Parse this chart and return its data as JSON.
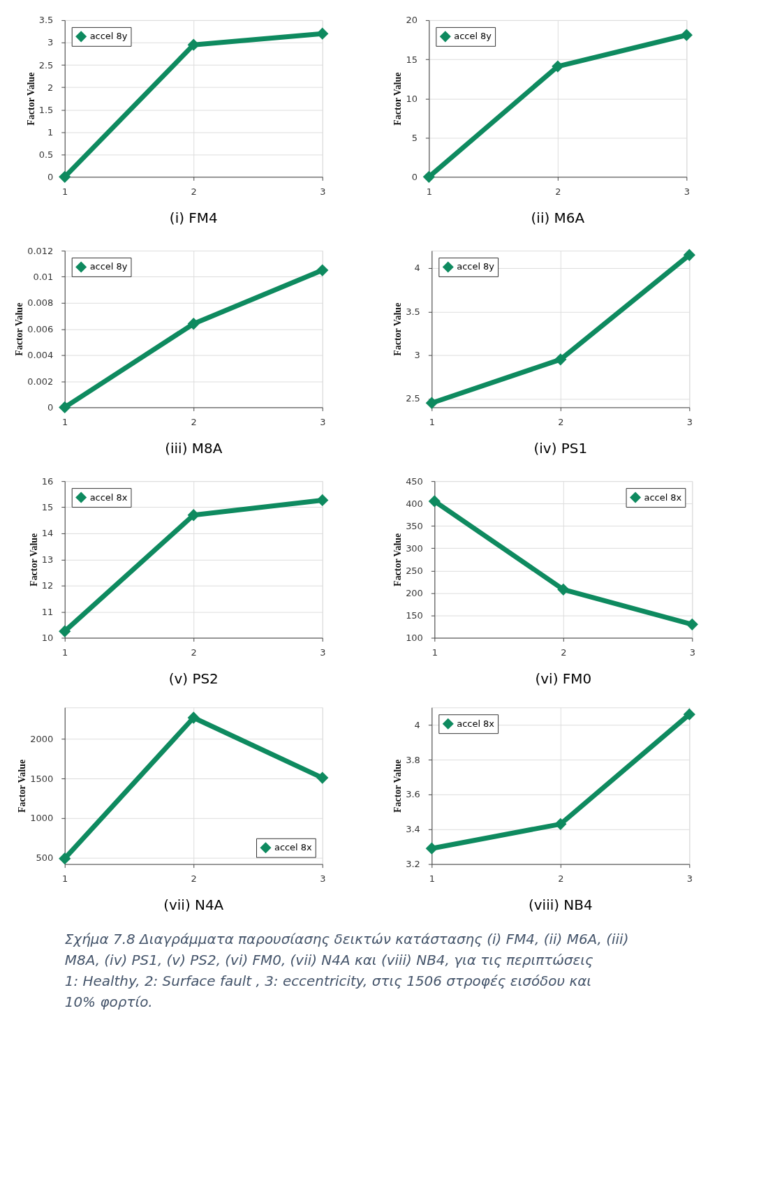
{
  "chart_data": [
    {
      "type": "line",
      "title": "(i) FM4",
      "ylabel": "Factor Value",
      "x": [
        1,
        2,
        3
      ],
      "xlim": [
        1,
        3
      ],
      "xticks": [
        1,
        2,
        3
      ],
      "ylim": [
        0,
        3.5
      ],
      "yticks": [
        0,
        0.5,
        1,
        1.5,
        2,
        2.5,
        3,
        3.5
      ],
      "grid": true,
      "legend": "top left",
      "marker": "diamond",
      "line_style": "solid",
      "series": [
        {
          "name": "accel 8y",
          "color": "#0e8a5f",
          "values": [
            0,
            2.95,
            3.2
          ]
        }
      ]
    },
    {
      "type": "line",
      "title": "(ii) M6A",
      "ylabel": "Factor Value",
      "x": [
        1,
        2,
        3
      ],
      "xlim": [
        1,
        3
      ],
      "xticks": [
        1,
        2,
        3
      ],
      "ylim": [
        0,
        20
      ],
      "yticks": [
        0,
        5,
        10,
        15,
        20
      ],
      "grid": true,
      "legend": "top left",
      "marker": "diamond",
      "line_style": "solid",
      "series": [
        {
          "name": "accel 8y",
          "color": "#0e8a5f",
          "values": [
            0,
            14.1,
            18.1
          ]
        }
      ]
    },
    {
      "type": "line",
      "title": "(iii) M8A",
      "ylabel": "Factor Value",
      "x": [
        1,
        2,
        3
      ],
      "xlim": [
        1,
        3
      ],
      "xticks": [
        1,
        2,
        3
      ],
      "ylim": [
        0,
        0.012
      ],
      "yticks": [
        0,
        0.002,
        0.004,
        0.006,
        0.008,
        0.01,
        0.012
      ],
      "grid": true,
      "legend": "top left",
      "marker": "diamond",
      "line_style": "solid",
      "series": [
        {
          "name": "accel 8y",
          "color": "#0e8a5f",
          "values": [
            0,
            0.0064,
            0.0105
          ]
        }
      ]
    },
    {
      "type": "line",
      "title": "(iv) PS1",
      "ylabel": "Factor Value",
      "x": [
        1,
        2,
        3
      ],
      "xlim": [
        1,
        3
      ],
      "xticks": [
        1,
        2,
        3
      ],
      "ylim": [
        2.4,
        4.2
      ],
      "yticks": [
        2.5,
        3,
        3.5,
        4
      ],
      "grid": true,
      "legend": "top left",
      "marker": "diamond",
      "line_style": "solid",
      "series": [
        {
          "name": "accel 8y",
          "color": "#0e8a5f",
          "values": [
            2.45,
            2.95,
            4.15
          ]
        }
      ]
    },
    {
      "type": "line",
      "title": "(v) PS2",
      "ylabel": "Factor Value",
      "x": [
        1,
        2,
        3
      ],
      "xlim": [
        1,
        3
      ],
      "xticks": [
        1,
        2,
        3
      ],
      "ylim": [
        10,
        16
      ],
      "yticks": [
        10,
        11,
        12,
        13,
        14,
        15,
        16
      ],
      "grid": true,
      "legend": "top left",
      "marker": "diamond",
      "line_style": "solid",
      "series": [
        {
          "name": "accel 8x",
          "color": "#0e8a5f",
          "values": [
            10.25,
            14.7,
            15.27
          ]
        }
      ]
    },
    {
      "type": "line",
      "title": "(vi) FM0",
      "ylabel": "Factor Value",
      "x": [
        1,
        2,
        3
      ],
      "xlim": [
        1,
        3
      ],
      "xticks": [
        1,
        2,
        3
      ],
      "ylim": [
        100,
        450
      ],
      "yticks": [
        100,
        150,
        200,
        250,
        300,
        350,
        400,
        450
      ],
      "grid": true,
      "legend": "top right",
      "marker": "diamond",
      "line_style": "solid",
      "series": [
        {
          "name": "accel 8x",
          "color": "#0e8a5f",
          "values": [
            405,
            208,
            130
          ]
        }
      ]
    },
    {
      "type": "line",
      "title": "(vii) N4A",
      "ylabel": "Factor Value",
      "x": [
        1,
        2,
        3
      ],
      "xlim": [
        1,
        3
      ],
      "xticks": [
        1,
        2,
        3
      ],
      "ylim": [
        420,
        2400
      ],
      "yticks": [
        500,
        1000,
        1500,
        2000
      ],
      "grid": true,
      "legend": "bottom right",
      "marker": "diamond",
      "line_style": "solid",
      "series": [
        {
          "name": "accel 8x",
          "color": "#0e8a5f",
          "values": [
            490,
            2270,
            1510
          ]
        }
      ]
    },
    {
      "type": "line",
      "title": "(viii) NB4",
      "ylabel": "Factor Value",
      "x": [
        1,
        2,
        3
      ],
      "xlim": [
        1,
        3
      ],
      "xticks": [
        1,
        2,
        3
      ],
      "ylim": [
        3.2,
        4.1
      ],
      "yticks": [
        3.2,
        3.4,
        3.6,
        3.8,
        4
      ],
      "grid": true,
      "legend": "top left",
      "marker": "diamond",
      "line_style": "solid",
      "annotations": [
        "Σχήμα 7.8 Διαγράμματα παρουσίασης δεικτών κατάστασης (i) FM4, (ii) M6A, (iii) M8A, (iv) PS1, (v) PS2, (vi) FM0, (vii) N4A και (viii) NB4, για τις περιπτώσεις 1: Healthy, 2: Surface fault , 3: eccentricity, στις 1506 στροφές εισόδου και 10% φορτίο."
      ],
      "series": [
        {
          "name": "accel 8x",
          "color": "#0e8a5f",
          "values": [
            3.29,
            3.43,
            4.06
          ]
        }
      ]
    }
  ]
}
